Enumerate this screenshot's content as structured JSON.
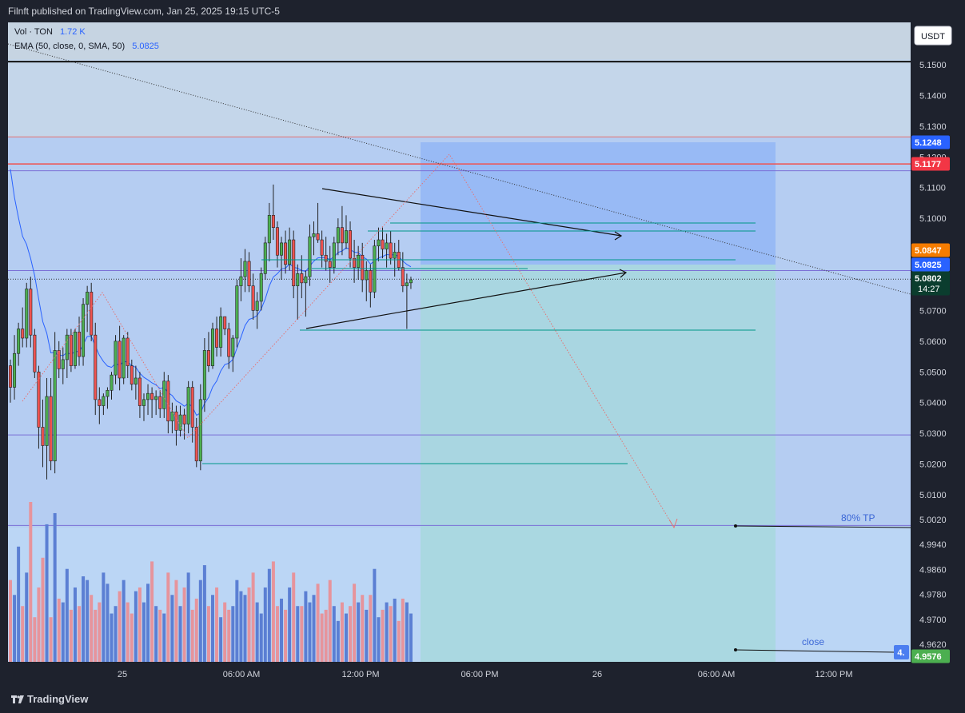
{
  "header": {
    "published_text": "Filnft published on TradingView.com, Jan 25, 2025 19:15 UTC-5"
  },
  "footer": {
    "brand": "TradingView"
  },
  "legend": {
    "vol_label": "Vol · TON",
    "vol_value": "1.72 K",
    "ema_label": "EMA (50, close, 0, SMA, 50)",
    "ema_value": "5.0825"
  },
  "currency_button": "USDT",
  "annotations": {
    "tp_label": "80% TP",
    "close_label": "close"
  },
  "colors": {
    "background": "#bbd6f5",
    "up": "#4caf50",
    "down": "#ef5350",
    "vol_up": "#5b7fd3",
    "vol_down": "#e6949c",
    "ema": "#2962ff",
    "teal_line": "#009688",
    "target_zone": "#a6d8dc",
    "stop_zone": "#8fb3f5"
  },
  "chart_data": {
    "type": "candlestick",
    "symbol": "TON / USDT",
    "ylim": [
      4.955,
      5.162
    ],
    "y_ticks": [
      "5.1500",
      "5.1400",
      "5.1300",
      "5.1200",
      "5.1100",
      "5.1000",
      "5.0900",
      "5.0800",
      "5.0700",
      "5.0600",
      "5.0500",
      "5.0400",
      "5.0300",
      "5.0200",
      "5.0100",
      "5.0020",
      "4.9940",
      "4.9860",
      "4.9780",
      "4.9700",
      "4.9620"
    ],
    "x_ticks": [
      "25",
      "06:00 AM",
      "12:00 PM",
      "06:00 PM",
      "26",
      "06:00 AM",
      "12:00 PM"
    ],
    "price_tags": [
      {
        "label": "5.1248",
        "color": "#2962ff"
      },
      {
        "label": "5.1177",
        "color": "#f23645"
      },
      {
        "label": "5.0847",
        "color": "#f57c00"
      },
      {
        "label": "5.0825",
        "color": "#2962ff"
      },
      {
        "label": "5.0802",
        "sub": "14:27",
        "color": "#0b3d2e"
      },
      {
        "label": "4.9576",
        "color": "#4caf50"
      },
      {
        "label": "4.",
        "color": "#4c7ef0"
      }
    ],
    "horizontal_levels": [
      5.151,
      5.1265,
      5.1177,
      5.1155,
      5.083,
      5.0295,
      5.0001
    ],
    "ohlc": [
      [
        5.052,
        5.054,
        5.04,
        5.045
      ],
      [
        5.045,
        5.062,
        5.041,
        5.056
      ],
      [
        5.056,
        5.066,
        5.052,
        5.064
      ],
      [
        5.064,
        5.071,
        5.058,
        5.061
      ],
      [
        5.061,
        5.079,
        5.058,
        5.077
      ],
      [
        5.077,
        5.081,
        5.058,
        5.062
      ],
      [
        5.062,
        5.064,
        5.048,
        5.05
      ],
      [
        5.05,
        5.052,
        5.025,
        5.032
      ],
      [
        5.032,
        5.041,
        5.019,
        5.026
      ],
      [
        5.026,
        5.048,
        5.015,
        5.042
      ],
      [
        5.042,
        5.048,
        5.018,
        5.021
      ],
      [
        5.021,
        5.063,
        5.017,
        5.057
      ],
      [
        5.057,
        5.06,
        5.048,
        5.051
      ],
      [
        5.051,
        5.058,
        5.046,
        5.054
      ],
      [
        5.054,
        5.064,
        5.048,
        5.062
      ],
      [
        5.062,
        5.064,
        5.05,
        5.052
      ],
      [
        5.052,
        5.064,
        5.051,
        5.063
      ],
      [
        5.063,
        5.068,
        5.052,
        5.055
      ],
      [
        5.055,
        5.074,
        5.052,
        5.072
      ],
      [
        5.072,
        5.078,
        5.063,
        5.076
      ],
      [
        5.076,
        5.079,
        5.06,
        5.062
      ],
      [
        5.062,
        5.066,
        5.036,
        5.041
      ],
      [
        5.041,
        5.045,
        5.033,
        5.039
      ],
      [
        5.039,
        5.043,
        5.036,
        5.042
      ],
      [
        5.042,
        5.045,
        5.038,
        5.044
      ],
      [
        5.044,
        5.05,
        5.041,
        5.049
      ],
      [
        5.049,
        5.062,
        5.046,
        5.06
      ],
      [
        5.06,
        5.065,
        5.044,
        5.048
      ],
      [
        5.048,
        5.062,
        5.046,
        5.061
      ],
      [
        5.061,
        5.063,
        5.048,
        5.052
      ],
      [
        5.052,
        5.054,
        5.044,
        5.046
      ],
      [
        5.046,
        5.052,
        5.041,
        5.048
      ],
      [
        5.048,
        5.05,
        5.035,
        5.039
      ],
      [
        5.039,
        5.043,
        5.034,
        5.041
      ],
      [
        5.041,
        5.046,
        5.036,
        5.043
      ],
      [
        5.043,
        5.045,
        5.035,
        5.041
      ],
      [
        5.041,
        5.044,
        5.036,
        5.042
      ],
      [
        5.042,
        5.044,
        5.035,
        5.038
      ],
      [
        5.038,
        5.05,
        5.035,
        5.047
      ],
      [
        5.047,
        5.049,
        5.03,
        5.034
      ],
      [
        5.034,
        5.04,
        5.03,
        5.037
      ],
      [
        5.037,
        5.039,
        5.026,
        5.031
      ],
      [
        5.031,
        5.039,
        5.029,
        5.036
      ],
      [
        5.036,
        5.038,
        5.028,
        5.033
      ],
      [
        5.033,
        5.047,
        5.03,
        5.045
      ],
      [
        5.045,
        5.047,
        5.027,
        5.032
      ],
      [
        5.032,
        5.035,
        5.019,
        5.021
      ],
      [
        5.021,
        5.046,
        5.018,
        5.041
      ],
      [
        5.041,
        5.061,
        5.037,
        5.057
      ],
      [
        5.057,
        5.063,
        5.05,
        5.052
      ],
      [
        5.052,
        5.066,
        5.051,
        5.064
      ],
      [
        5.064,
        5.068,
        5.055,
        5.058
      ],
      [
        5.058,
        5.071,
        5.055,
        5.068
      ],
      [
        5.068,
        5.068,
        5.062,
        5.064
      ],
      [
        5.064,
        5.066,
        5.051,
        5.055
      ],
      [
        5.055,
        5.062,
        5.05,
        5.061
      ],
      [
        5.061,
        5.08,
        5.058,
        5.078
      ],
      [
        5.078,
        5.087,
        5.073,
        5.081
      ],
      [
        5.081,
        5.09,
        5.076,
        5.086
      ],
      [
        5.086,
        5.089,
        5.076,
        5.078
      ],
      [
        5.078,
        5.082,
        5.067,
        5.07
      ],
      [
        5.07,
        5.076,
        5.064,
        5.073
      ],
      [
        5.073,
        5.084,
        5.07,
        5.082
      ],
      [
        5.082,
        5.094,
        5.08,
        5.092
      ],
      [
        5.092,
        5.105,
        5.086,
        5.101
      ],
      [
        5.101,
        5.111,
        5.093,
        5.097
      ],
      [
        5.097,
        5.099,
        5.084,
        5.088
      ],
      [
        5.088,
        5.094,
        5.08,
        5.092
      ],
      [
        5.092,
        5.096,
        5.082,
        5.085
      ],
      [
        5.085,
        5.097,
        5.083,
        5.093
      ],
      [
        5.093,
        5.096,
        5.074,
        5.078
      ],
      [
        5.078,
        5.085,
        5.067,
        5.082
      ],
      [
        5.082,
        5.088,
        5.074,
        5.079
      ],
      [
        5.079,
        5.083,
        5.068,
        5.081
      ],
      [
        5.081,
        5.098,
        5.078,
        5.094
      ],
      [
        5.094,
        5.099,
        5.088,
        5.095
      ],
      [
        5.095,
        5.105,
        5.092,
        5.093
      ],
      [
        5.093,
        5.096,
        5.084,
        5.088
      ],
      [
        5.088,
        5.094,
        5.083,
        5.086
      ],
      [
        5.086,
        5.091,
        5.079,
        5.084
      ],
      [
        5.084,
        5.094,
        5.082,
        5.092
      ],
      [
        5.092,
        5.1,
        5.088,
        5.097
      ],
      [
        5.097,
        5.104,
        5.088,
        5.092
      ],
      [
        5.092,
        5.101,
        5.09,
        5.096
      ],
      [
        5.096,
        5.099,
        5.084,
        5.087
      ],
      [
        5.087,
        5.093,
        5.079,
        5.084
      ],
      [
        5.084,
        5.091,
        5.08,
        5.088
      ],
      [
        5.088,
        5.092,
        5.076,
        5.08
      ],
      [
        5.08,
        5.086,
        5.073,
        5.083
      ],
      [
        5.083,
        5.085,
        5.071,
        5.076
      ],
      [
        5.076,
        5.093,
        5.074,
        5.091
      ],
      [
        5.091,
        5.097,
        5.086,
        5.093
      ],
      [
        5.093,
        5.097,
        5.087,
        5.09
      ],
      [
        5.09,
        5.095,
        5.084,
        5.092
      ],
      [
        5.092,
        5.096,
        5.085,
        5.087
      ],
      [
        5.087,
        5.092,
        5.081,
        5.089
      ],
      [
        5.089,
        5.093,
        5.083,
        5.084
      ],
      [
        5.084,
        5.089,
        5.076,
        5.078
      ],
      [
        5.078,
        5.082,
        5.064,
        5.079
      ],
      [
        5.079,
        5.081,
        5.077,
        5.08
      ]
    ],
    "volume": [
      22,
      18,
      31,
      15,
      24,
      43,
      12,
      20,
      28,
      37,
      12,
      40,
      17,
      16,
      25,
      14,
      20,
      15,
      23,
      22,
      18,
      14,
      16,
      24,
      21,
      13,
      15,
      19,
      22,
      16,
      13,
      19,
      20,
      16,
      21,
      27,
      15,
      14,
      13,
      24,
      18,
      22,
      15,
      20,
      24,
      14,
      17,
      22,
      26,
      15,
      18,
      20,
      12,
      16,
      14,
      15,
      22,
      19,
      18,
      20,
      24,
      16,
      13,
      20,
      25,
      27,
      15,
      17,
      14,
      20,
      24,
      15,
      15,
      19,
      16,
      18,
      21,
      13,
      14,
      22,
      15,
      11,
      16,
      13,
      15,
      21,
      16,
      18,
      14,
      18,
      25,
      12,
      14,
      16,
      15,
      17,
      11,
      17,
      16,
      13
    ]
  }
}
